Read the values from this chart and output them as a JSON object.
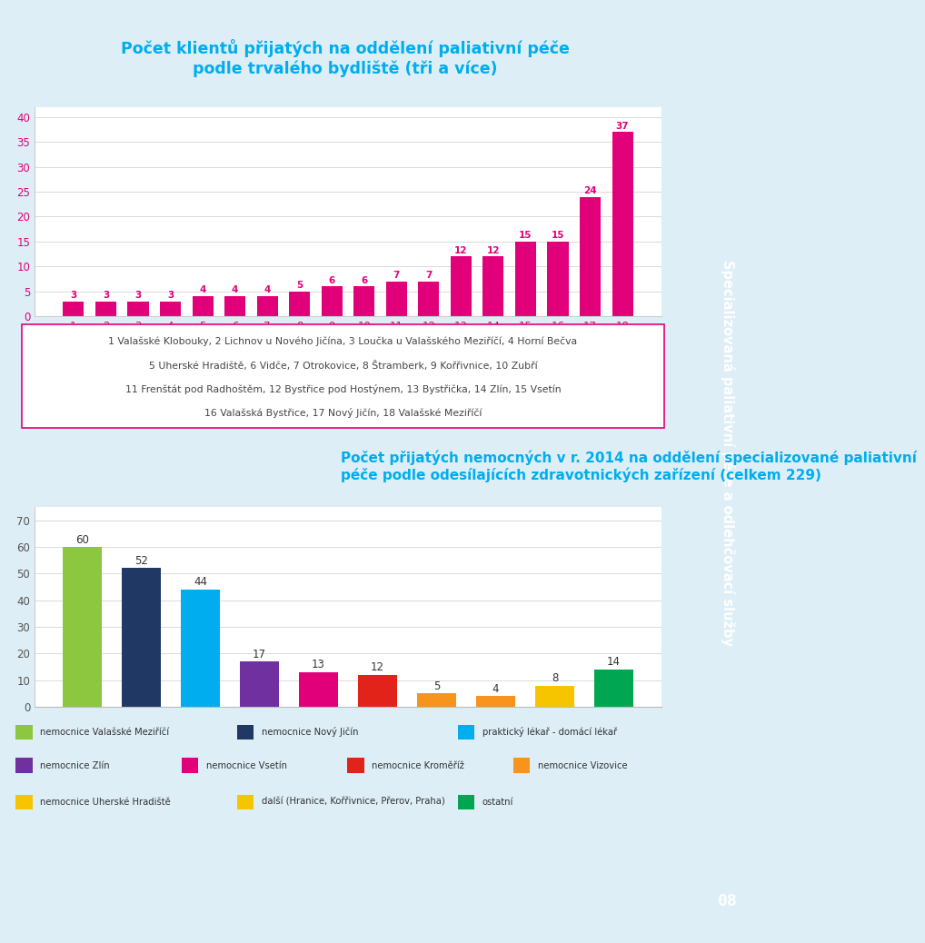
{
  "chart1": {
    "title_line1": "Počet klientů přijatých na oddělení paliativní péče",
    "title_line2": "podle trvalého bydliště (tři a více)",
    "values": [
      3,
      3,
      3,
      3,
      4,
      4,
      4,
      5,
      6,
      6,
      7,
      7,
      12,
      12,
      15,
      15,
      24,
      37
    ],
    "x_labels": [
      "1",
      "2",
      "3",
      "4",
      "5",
      "6",
      "7",
      "8",
      "9",
      "10",
      "11",
      "12",
      "13",
      "14",
      "15",
      "16",
      "17",
      "18"
    ],
    "bar_color": "#e2007a",
    "ylim": [
      0,
      42
    ],
    "yticks": [
      0,
      5,
      10,
      15,
      20,
      25,
      30,
      35,
      40
    ],
    "footnote_lines": [
      [
        "1",
        " Valašské Klobouky, ",
        "2",
        " Lichnov u Nového Jičína, ",
        "3",
        " Loučka u Valašského Meziříčí, ",
        "4",
        " Horní Bečva"
      ],
      [
        "5",
        " Uherské Hradiště, ",
        "6",
        " Vidče, ",
        "7",
        " Otrokovice, ",
        "8",
        " Štramberk, ",
        "9",
        " Kořřivnice, ",
        "10",
        " Zubří"
      ],
      [
        "11",
        " Frenštát pod Radhoštěm, ",
        "12",
        " Bystřice pod Hostýnem, ",
        "13",
        " Bystřička, ",
        "14",
        " Zlín, ",
        "15",
        " Vsetín"
      ],
      [
        "16",
        " Valašská Bystřice, ",
        "17",
        " Nový Jičín, ",
        "18",
        " Valašské Meziříčí"
      ]
    ]
  },
  "chart2": {
    "title_line1": "Počet přijatých nemocných v r. 2014 na oddělení specializované paliativní",
    "title_line2": "péče podle odesílajících zdravotnických zařízení (celkem 229)",
    "values": [
      60,
      52,
      44,
      17,
      13,
      12,
      5,
      4,
      8,
      14
    ],
    "bar_colors": [
      "#8dc63f",
      "#1f3864",
      "#00adef",
      "#7030a0",
      "#e2007a",
      "#e2231a",
      "#f7941d",
      "#f7941d",
      "#f7c500",
      "#00a651"
    ],
    "ylim": [
      0,
      75
    ],
    "yticks": [
      0,
      10,
      20,
      30,
      40,
      50,
      60,
      70
    ]
  },
  "legend_items": [
    [
      "#8dc63f",
      "nemocnice Valašské Meziříčí"
    ],
    [
      "#1f3864",
      "nemocnice Nový Jičín"
    ],
    [
      "#00adef",
      "praktický lékař - domácí lékař"
    ],
    [
      "#7030a0",
      "nemocnice Zlín"
    ],
    [
      "#e2007a",
      "nemocnice Vsetín"
    ],
    [
      "#e2231a",
      "nemocnice Kroměříž"
    ],
    [
      "#f7941d",
      "nemocnice Vizovice"
    ],
    [
      "#f7c500",
      "nemocnice Uherské Hradiště"
    ],
    [
      "#f7c500",
      "další (Hranice, Kořřivnice, Přerov, Praha)"
    ],
    [
      "#00a651",
      "ostatní"
    ]
  ],
  "bg_color": "#ddeef6",
  "sidebar_color": "#e2007a",
  "sidebar_text": "Specializovaná paliativní péče a odlehčovací služby",
  "page_number": "08",
  "title_color": "#00adef",
  "pink": "#e2007a",
  "footnote_border_color": "#e2007a"
}
